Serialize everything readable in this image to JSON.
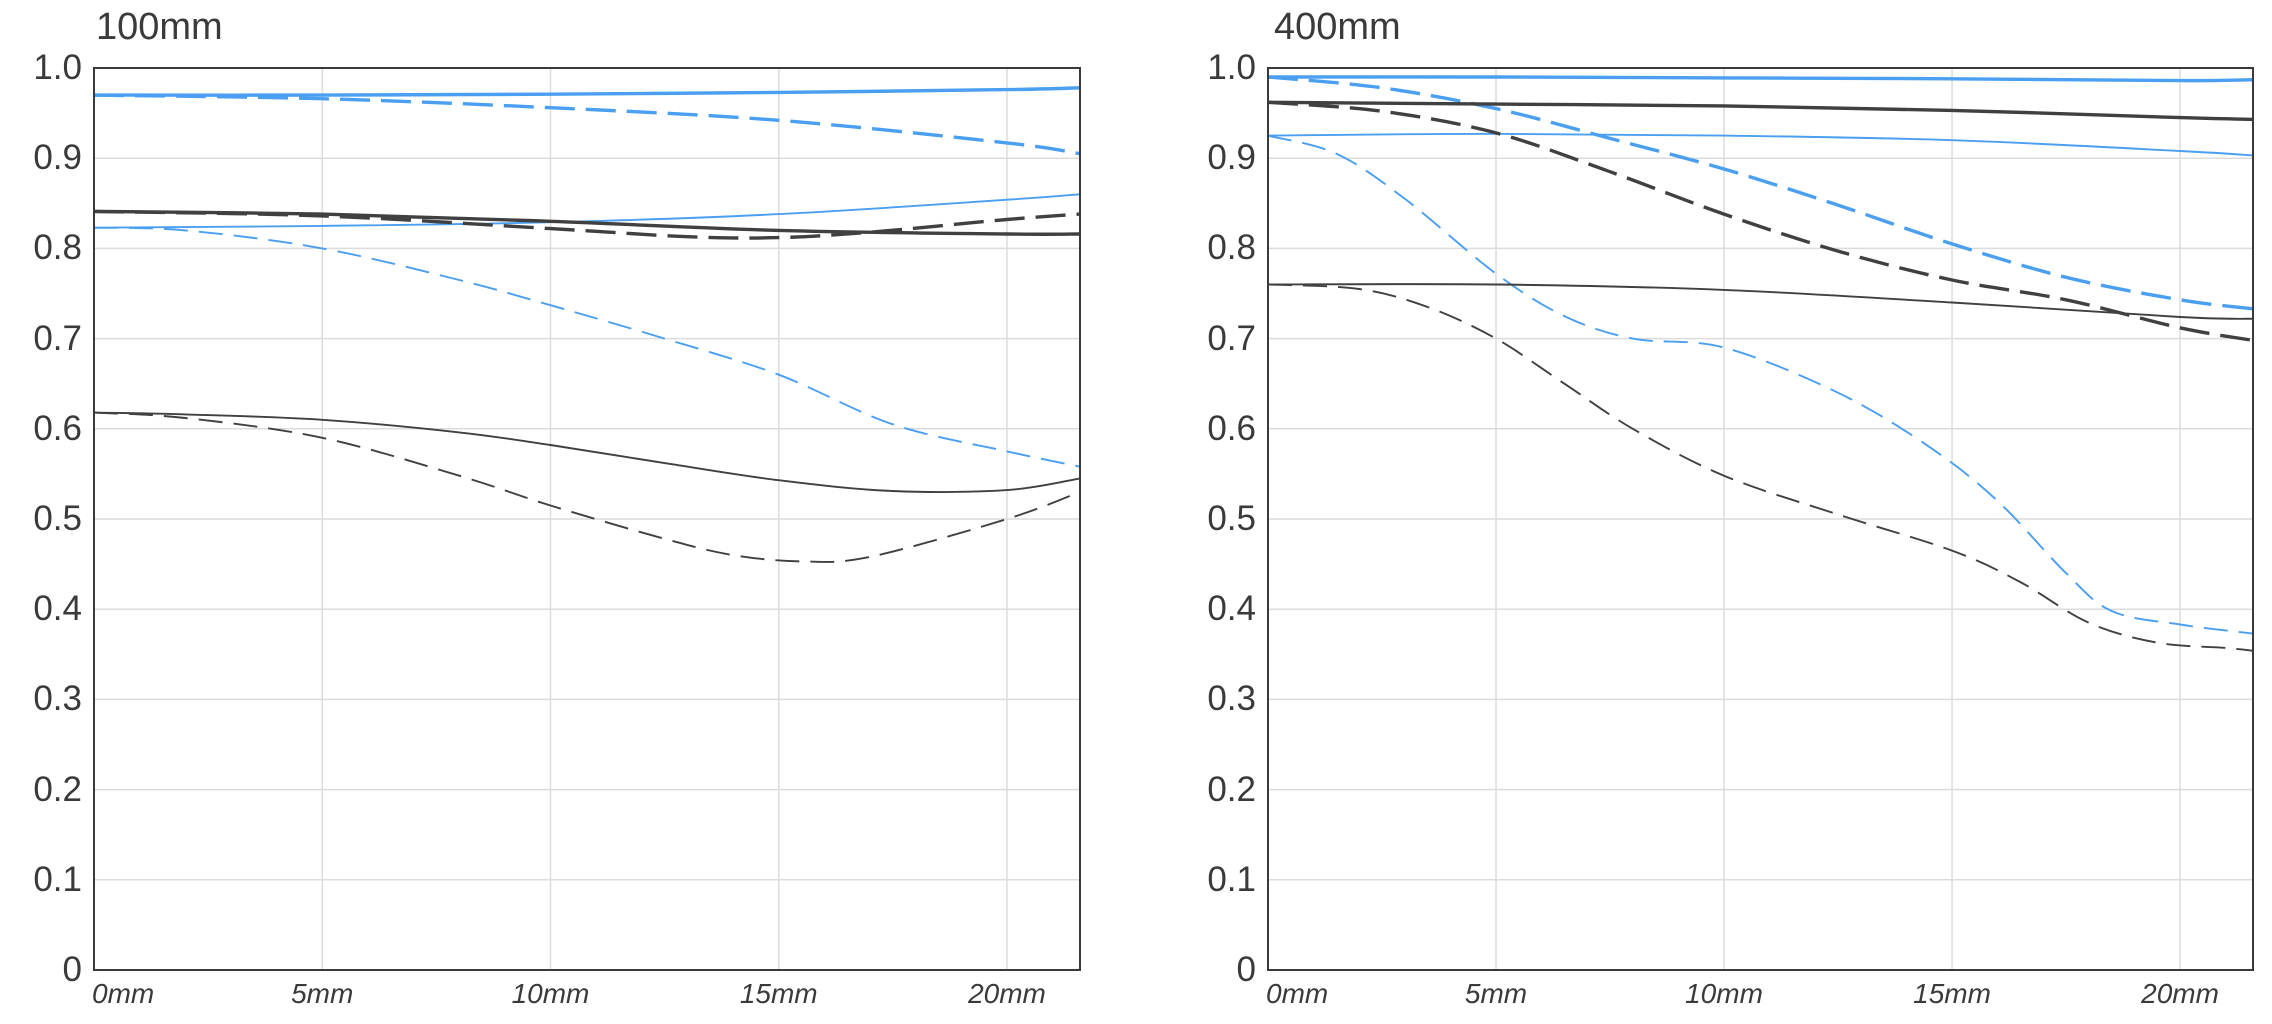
{
  "chart_data": [
    {
      "type": "line",
      "title": "100mm",
      "xlabel": "",
      "ylabel": "",
      "xlim": [
        0,
        21.6
      ],
      "ylim": [
        0,
        1.0
      ],
      "x_ticks": [
        "0mm",
        "5mm",
        "10mm",
        "15mm",
        "20mm"
      ],
      "x_tick_values": [
        0,
        5,
        10,
        15,
        20
      ],
      "y_ticks": [
        "1.0",
        "0.9",
        "0.8",
        "0.7",
        "0.6",
        "0.5",
        "0.4",
        "0.3",
        "0.2",
        "0.1",
        "0"
      ],
      "grid": true,
      "series": [
        {
          "color": "#4a9ff0",
          "style": "solid",
          "weight": "thick",
          "x": [
            0,
            5,
            10,
            15,
            20,
            21.6
          ],
          "y": [
            0.97,
            0.97,
            0.971,
            0.973,
            0.976,
            0.978
          ]
        },
        {
          "color": "#4a9ff0",
          "style": "dashed",
          "weight": "thick",
          "x": [
            0,
            5,
            10,
            15,
            20,
            21.6
          ],
          "y": [
            0.97,
            0.966,
            0.956,
            0.942,
            0.917,
            0.905
          ]
        },
        {
          "color": "#4a9ff0",
          "style": "solid",
          "weight": "thin",
          "x": [
            0,
            5,
            10,
            15,
            20,
            21.6
          ],
          "y": [
            0.823,
            0.825,
            0.829,
            0.838,
            0.854,
            0.86
          ]
        },
        {
          "color": "#4a9ff0",
          "style": "dashed",
          "weight": "thin",
          "x": [
            0,
            2,
            5,
            8,
            10,
            12.5,
            15,
            17.5,
            20,
            21.6
          ],
          "y": [
            0.823,
            0.82,
            0.8,
            0.765,
            0.737,
            0.7,
            0.66,
            0.605,
            0.575,
            0.558
          ]
        },
        {
          "color": "#404040",
          "style": "solid",
          "weight": "thick",
          "x": [
            0,
            5,
            10,
            15,
            20,
            21.6
          ],
          "y": [
            0.841,
            0.838,
            0.83,
            0.82,
            0.816,
            0.816
          ]
        },
        {
          "color": "#404040",
          "style": "dashed",
          "weight": "thick",
          "x": [
            0,
            5,
            10,
            13,
            15,
            17,
            20,
            21.6
          ],
          "y": [
            0.841,
            0.836,
            0.822,
            0.813,
            0.812,
            0.818,
            0.832,
            0.838
          ]
        },
        {
          "color": "#404040",
          "style": "solid",
          "weight": "thin",
          "x": [
            0,
            2,
            5,
            8,
            10,
            12.5,
            15,
            17.5,
            20,
            21.6
          ],
          "y": [
            0.618,
            0.616,
            0.61,
            0.596,
            0.582,
            0.562,
            0.543,
            0.531,
            0.532,
            0.545
          ]
        },
        {
          "color": "#404040",
          "style": "dashed",
          "weight": "thin",
          "x": [
            0,
            2,
            5,
            8,
            10,
            12.5,
            14,
            15.5,
            17,
            20,
            21.6
          ],
          "y": [
            0.618,
            0.612,
            0.59,
            0.548,
            0.515,
            0.478,
            0.46,
            0.453,
            0.458,
            0.5,
            0.53
          ]
        }
      ]
    },
    {
      "type": "line",
      "title": "400mm",
      "xlabel": "",
      "ylabel": "",
      "xlim": [
        0,
        21.6
      ],
      "ylim": [
        0,
        1.0
      ],
      "x_ticks": [
        "0mm",
        "5mm",
        "10mm",
        "15mm",
        "20mm"
      ],
      "x_tick_values": [
        0,
        5,
        10,
        15,
        20
      ],
      "y_ticks": [
        "1.0",
        "0.9",
        "0.8",
        "0.7",
        "0.6",
        "0.5",
        "0.4",
        "0.3",
        "0.2",
        "0.1",
        "0"
      ],
      "grid": true,
      "series": [
        {
          "color": "#4a9ff0",
          "style": "solid",
          "weight": "thick",
          "x": [
            0,
            5,
            10,
            15,
            20,
            21.6
          ],
          "y": [
            0.99,
            0.99,
            0.989,
            0.988,
            0.986,
            0.987
          ]
        },
        {
          "color": "#4a9ff0",
          "style": "dashed",
          "weight": "thick",
          "x": [
            0,
            2.5,
            5,
            7.5,
            10,
            12.5,
            15,
            17.5,
            20,
            21.6
          ],
          "y": [
            0.99,
            0.978,
            0.955,
            0.922,
            0.888,
            0.848,
            0.805,
            0.768,
            0.743,
            0.733
          ]
        },
        {
          "color": "#4a9ff0",
          "style": "solid",
          "weight": "thin",
          "x": [
            0,
            5,
            10,
            15,
            20,
            21.6
          ],
          "y": [
            0.925,
            0.927,
            0.925,
            0.92,
            0.908,
            0.903
          ]
        },
        {
          "color": "#4a9ff0",
          "style": "dashed",
          "weight": "thin",
          "x": [
            0,
            1.5,
            3,
            5,
            6.5,
            8,
            10,
            12.5,
            14.5,
            16,
            17.5,
            18.5,
            20,
            21.6
          ],
          "y": [
            0.925,
            0.905,
            0.855,
            0.772,
            0.725,
            0.7,
            0.69,
            0.64,
            0.58,
            0.52,
            0.44,
            0.398,
            0.383,
            0.373
          ]
        },
        {
          "color": "#404040",
          "style": "solid",
          "weight": "thick",
          "x": [
            0,
            5,
            10,
            15,
            20,
            21.6
          ],
          "y": [
            0.962,
            0.96,
            0.958,
            0.953,
            0.945,
            0.943
          ]
        },
        {
          "color": "#404040",
          "style": "dashed",
          "weight": "thick",
          "x": [
            0,
            2.5,
            5,
            7.5,
            10,
            12.5,
            15,
            17.5,
            20,
            21.6
          ],
          "y": [
            0.962,
            0.952,
            0.928,
            0.885,
            0.838,
            0.797,
            0.765,
            0.743,
            0.712,
            0.698
          ]
        },
        {
          "color": "#404040",
          "style": "solid",
          "weight": "thin",
          "x": [
            0,
            5,
            10,
            15,
            20,
            21.6
          ],
          "y": [
            0.76,
            0.76,
            0.754,
            0.74,
            0.724,
            0.722
          ]
        },
        {
          "color": "#404040",
          "style": "dashed",
          "weight": "thin",
          "x": [
            0,
            2,
            3.5,
            5,
            6.5,
            8,
            10,
            12.5,
            15,
            16.5,
            18,
            19.5,
            21,
            21.6
          ],
          "y": [
            0.76,
            0.755,
            0.735,
            0.7,
            0.65,
            0.6,
            0.548,
            0.505,
            0.465,
            0.43,
            0.385,
            0.363,
            0.357,
            0.354
          ]
        }
      ]
    }
  ]
}
